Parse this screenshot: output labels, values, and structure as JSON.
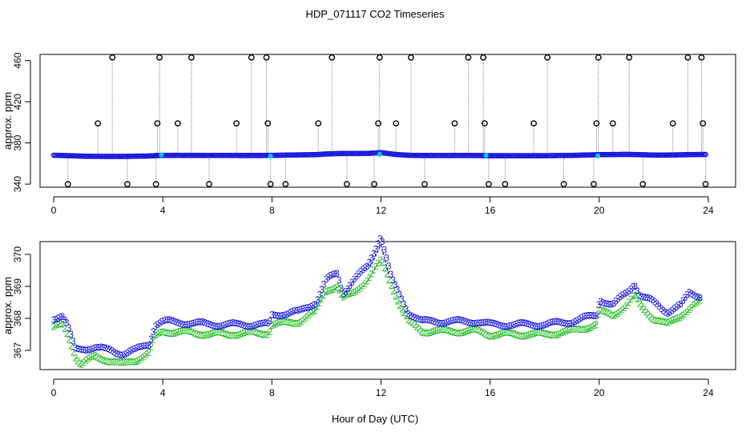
{
  "chart_data": {
    "title": "HDP_071117  CO2 Timeseries",
    "xlabel": "Hour of Day (UTC)",
    "colors": {
      "frame": "#000000",
      "raw": "#000000",
      "series3": "#1a1adc",
      "series2": "#22bb22",
      "cyan": "#00c8dc",
      "drop": "#888888"
    },
    "panels": [
      {
        "type": "scatter",
        "name": "top",
        "ylabel": "approx. ppm",
        "xlim": [
          -0.5,
          25.0
        ],
        "ylim": [
          337,
          466
        ],
        "xticks": [
          0,
          4,
          8,
          12,
          16,
          20,
          24
        ],
        "xtick_labels": [
          "0",
          "4",
          "8",
          "12",
          "16",
          "20",
          "24"
        ],
        "yticks": [
          340,
          380,
          420,
          460
        ],
        "ytick_labels": [
          "340",
          "380",
          "420",
          "460"
        ],
        "baseline_knots": [
          [
            0.0,
            368.0
          ],
          [
            0.6,
            367.6
          ],
          [
            1.2,
            367.0
          ],
          [
            2.5,
            366.9
          ],
          [
            3.5,
            367.3
          ],
          [
            3.8,
            367.8
          ],
          [
            4.0,
            367.9
          ],
          [
            7.5,
            367.8
          ],
          [
            8.0,
            367.9
          ],
          [
            9.0,
            368.4
          ],
          [
            9.6,
            368.6
          ],
          [
            10.0,
            369.3
          ],
          [
            10.5,
            369.7
          ],
          [
            11.5,
            369.8
          ],
          [
            12.0,
            370.6
          ],
          [
            12.5,
            368.9
          ],
          [
            13.0,
            368.0
          ],
          [
            13.5,
            367.8
          ],
          [
            15.5,
            367.8
          ],
          [
            16.0,
            367.6
          ],
          [
            18.0,
            367.6
          ],
          [
            19.0,
            367.9
          ],
          [
            20.0,
            368.6
          ],
          [
            21.0,
            368.9
          ],
          [
            21.5,
            368.6
          ],
          [
            22.0,
            368.2
          ],
          [
            22.5,
            368.2
          ],
          [
            23.0,
            368.5
          ],
          [
            23.7,
            368.8
          ]
        ],
        "spikes": [
          [
            0.52,
            340
          ],
          [
            1.62,
            399
          ],
          [
            2.15,
            463
          ],
          [
            2.7,
            340
          ],
          [
            3.75,
            340
          ],
          [
            3.8,
            399
          ],
          [
            3.88,
            463
          ],
          [
            4.55,
            399
          ],
          [
            5.05,
            463
          ],
          [
            5.7,
            340
          ],
          [
            6.7,
            399
          ],
          [
            7.25,
            463
          ],
          [
            7.8,
            463
          ],
          [
            7.85,
            399
          ],
          [
            7.95,
            340
          ],
          [
            8.5,
            340
          ],
          [
            9.7,
            399
          ],
          [
            10.2,
            463
          ],
          [
            10.75,
            340
          ],
          [
            11.75,
            340
          ],
          [
            11.9,
            399
          ],
          [
            11.95,
            463
          ],
          [
            12.55,
            399
          ],
          [
            13.1,
            463
          ],
          [
            13.6,
            340
          ],
          [
            14.7,
            399
          ],
          [
            15.2,
            463
          ],
          [
            15.75,
            463
          ],
          [
            15.8,
            399
          ],
          [
            15.95,
            340
          ],
          [
            16.55,
            340
          ],
          [
            17.6,
            399
          ],
          [
            18.1,
            463
          ],
          [
            18.7,
            340
          ],
          [
            19.8,
            340
          ],
          [
            19.9,
            399
          ],
          [
            19.97,
            463
          ],
          [
            20.5,
            399
          ],
          [
            21.1,
            463
          ],
          [
            21.6,
            340
          ],
          [
            22.7,
            399
          ],
          [
            23.25,
            463
          ],
          [
            23.75,
            463
          ],
          [
            23.8,
            399
          ],
          [
            23.9,
            340
          ]
        ],
        "cyan_points": [
          [
            3.95,
            368.5
          ],
          [
            7.95,
            367.2
          ],
          [
            11.95,
            369.0
          ],
          [
            15.85,
            367.8
          ],
          [
            19.95,
            367.5
          ]
        ]
      },
      {
        "type": "scatter",
        "name": "bottom",
        "ylabel": "approx. ppm",
        "xlim": [
          -0.5,
          25.0
        ],
        "ylim": [
          366.4,
          370.4
        ],
        "xticks": [
          0,
          4,
          8,
          12,
          16,
          20,
          24
        ],
        "xtick_labels": [
          "0",
          "4",
          "8",
          "12",
          "16",
          "20",
          "24"
        ],
        "yticks": [
          367,
          368,
          369,
          370
        ],
        "ytick_labels": [
          "367",
          "368",
          "369",
          "370"
        ],
        "series": [
          {
            "name": "3",
            "marker": "3",
            "knots": [
              [
                0.0,
                368.0
              ],
              [
                0.3,
                368.1
              ],
              [
                0.5,
                367.8
              ],
              [
                0.8,
                367.0
              ],
              [
                1.5,
                367.1
              ],
              [
                2.0,
                367.0
              ],
              [
                2.5,
                366.9
              ],
              [
                3.0,
                367.0
              ],
              [
                3.5,
                367.2
              ],
              [
                3.7,
                367.8
              ],
              [
                4.0,
                367.9
              ],
              [
                6.0,
                367.8
              ],
              [
                7.9,
                367.8
              ],
              [
                8.0,
                368.1
              ],
              [
                9.0,
                368.2
              ],
              [
                9.6,
                368.5
              ],
              [
                10.0,
                369.2
              ],
              [
                10.4,
                369.4
              ],
              [
                10.6,
                368.8
              ],
              [
                11.0,
                369.2
              ],
              [
                11.5,
                369.6
              ],
              [
                12.0,
                370.6
              ],
              [
                12.4,
                369.2
              ],
              [
                12.7,
                368.7
              ],
              [
                13.0,
                368.2
              ],
              [
                13.5,
                367.9
              ],
              [
                15.5,
                367.9
              ],
              [
                16.0,
                367.8
              ],
              [
                18.0,
                367.8
              ],
              [
                19.0,
                367.9
              ],
              [
                19.9,
                368.1
              ],
              [
                20.0,
                368.6
              ],
              [
                20.5,
                368.4
              ],
              [
                21.0,
                368.8
              ],
              [
                21.3,
                369.1
              ],
              [
                21.5,
                368.7
              ],
              [
                22.0,
                368.5
              ],
              [
                22.5,
                368.2
              ],
              [
                23.0,
                368.4
              ],
              [
                23.3,
                368.8
              ],
              [
                23.7,
                368.7
              ]
            ]
          },
          {
            "name": "2",
            "marker": "2",
            "knots": [
              [
                0.0,
                367.7
              ],
              [
                0.3,
                367.8
              ],
              [
                0.5,
                367.5
              ],
              [
                0.8,
                366.8
              ],
              [
                1.0,
                366.55
              ],
              [
                1.5,
                366.8
              ],
              [
                2.0,
                366.7
              ],
              [
                2.5,
                366.55
              ],
              [
                3.0,
                366.7
              ],
              [
                3.5,
                366.9
              ],
              [
                3.7,
                367.4
              ],
              [
                4.0,
                367.6
              ],
              [
                6.0,
                367.5
              ],
              [
                7.9,
                367.55
              ],
              [
                8.0,
                367.8
              ],
              [
                9.0,
                367.9
              ],
              [
                9.6,
                368.2
              ],
              [
                10.0,
                368.9
              ],
              [
                10.4,
                369.0
              ],
              [
                10.6,
                368.6
              ],
              [
                11.0,
                368.8
              ],
              [
                11.5,
                369.2
              ],
              [
                12.0,
                369.8
              ],
              [
                12.4,
                369.0
              ],
              [
                12.7,
                368.4
              ],
              [
                13.0,
                367.9
              ],
              [
                13.5,
                367.6
              ],
              [
                15.5,
                367.6
              ],
              [
                16.0,
                367.5
              ],
              [
                18.0,
                367.5
              ],
              [
                19.0,
                367.6
              ],
              [
                19.9,
                367.8
              ],
              [
                20.0,
                368.2
              ],
              [
                20.5,
                368.1
              ],
              [
                21.0,
                368.4
              ],
              [
                21.3,
                368.7
              ],
              [
                21.5,
                368.4
              ],
              [
                22.0,
                368.0
              ],
              [
                22.5,
                367.8
              ],
              [
                23.0,
                368.1
              ],
              [
                23.3,
                368.3
              ],
              [
                23.7,
                368.5
              ]
            ]
          }
        ]
      }
    ]
  }
}
